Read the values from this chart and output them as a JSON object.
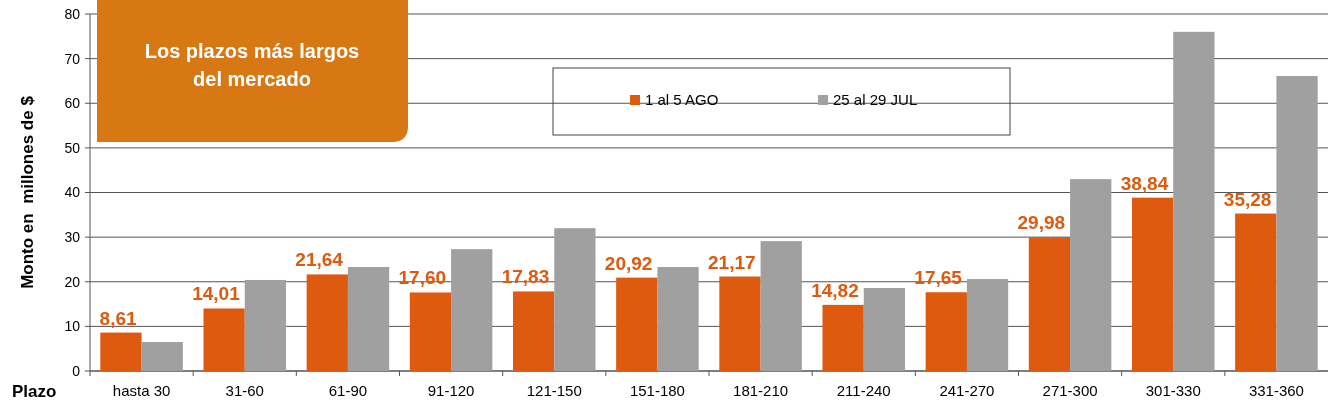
{
  "chart_data": {
    "type": "bar",
    "xlabel": "Plazo",
    "ylabel": "Monto en  millones de $",
    "annotations": [
      "Los plazos más largos del mercado"
    ],
    "categories": [
      "hasta 30",
      "31-60",
      "61-90",
      "91-120",
      "121-150",
      "151-180",
      "181-210",
      "211-240",
      "241-270",
      "271-300",
      "301-330",
      "331-360"
    ],
    "series": [
      {
        "name": "1 al 5 AGO",
        "color": "#dd5a0e",
        "values": [
          8.61,
          14.01,
          21.64,
          17.6,
          17.83,
          20.92,
          21.17,
          14.82,
          17.65,
          29.98,
          38.84,
          35.28
        ],
        "value_labels": [
          "8,61",
          "14,01",
          "21,64",
          "17,60",
          "17,83",
          "20,92",
          "21,17",
          "14,82",
          "17,65",
          "29,98",
          "38,84",
          "35,28"
        ]
      },
      {
        "name": "25 al 29 JUL",
        "color": "#a0a0a0",
        "values": [
          6.5,
          20.4,
          23.3,
          27.3,
          32.0,
          23.3,
          29.1,
          18.6,
          20.6,
          43.0,
          76.0,
          66.1
        ]
      }
    ],
    "ylim": [
      0,
      80
    ],
    "yticks": [
      0,
      10,
      20,
      30,
      40,
      50,
      60,
      70,
      80
    ],
    "grid": "y",
    "legend": "top right"
  }
}
